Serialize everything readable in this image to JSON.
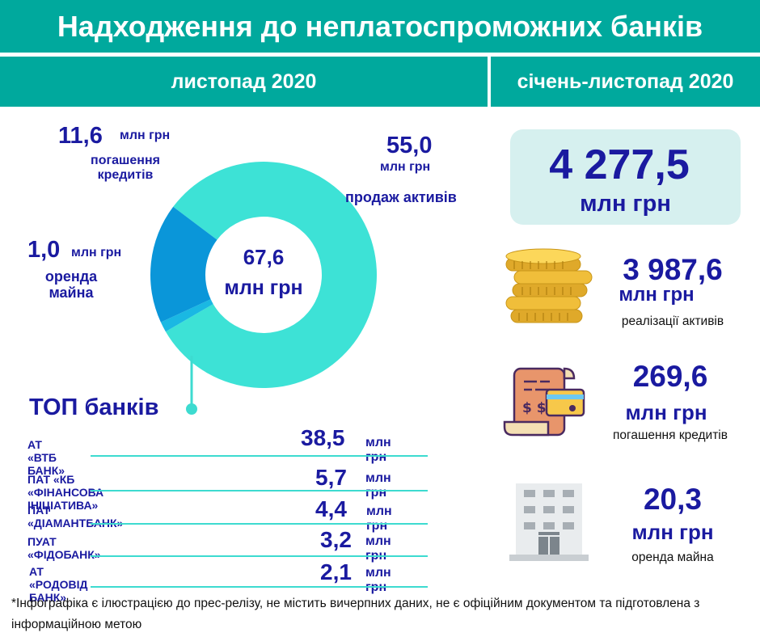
{
  "title": "Надходження до неплатоспроможних банків",
  "periods": {
    "left": "листопад 2020",
    "right": "січень-листопад 2020"
  },
  "unit": "млн грн",
  "chart_data": {
    "type": "pie",
    "center_value": "67,6",
    "center_unit": "млн грн",
    "slices": [
      {
        "label": "продаж активів",
        "value": 55.0,
        "value_text": "55,0",
        "color": "#3de2d6"
      },
      {
        "label": "погашення кредитів",
        "value": 11.6,
        "value_text": "11,6",
        "color": "#0a96d9"
      },
      {
        "label": "оренда майна",
        "value": 1.0,
        "value_text": "1,0",
        "color": "#1ab8e3"
      }
    ]
  },
  "labels": {
    "credits_line1": "погашення",
    "credits_line2": "кредитів",
    "rent_line1": "оренда",
    "rent_line2": "майна"
  },
  "top_banks": {
    "heading": "ТОП банків",
    "items": [
      {
        "name": "АТ «ВТБ БАНК»",
        "value": "38,5"
      },
      {
        "name": "ПАТ «КБ «ФІНАНСОВА ІНІЦІАТИВА»",
        "value": "5,7"
      },
      {
        "name": "ПАТ «ДІАМАНТБАНК»",
        "value": "4,4"
      },
      {
        "name": "ПУАТ «ФІДОБАНК»",
        "value": "3,2"
      },
      {
        "name": "АТ «РОДОВІД БАНК»",
        "value": "2,1"
      }
    ]
  },
  "annual": {
    "total": "4 277,5",
    "total_unit": "млн грн",
    "items": [
      {
        "value": "3 987,6",
        "unit": "млн грн",
        "desc": "реалізації активів",
        "icon": "coins-icon"
      },
      {
        "value": "269,6",
        "unit": "млн грн",
        "desc": "погашення кредитів",
        "icon": "bill-card-icon"
      },
      {
        "value": "20,3",
        "unit": "млн грн",
        "desc": "оренда майна",
        "icon": "building-icon"
      }
    ]
  },
  "footnote": "*Інфографіка є ілюстрацією до прес-релізу, не містить вичерпних даних, не є офіційним документом та підготовлена з інформаційною метою"
}
